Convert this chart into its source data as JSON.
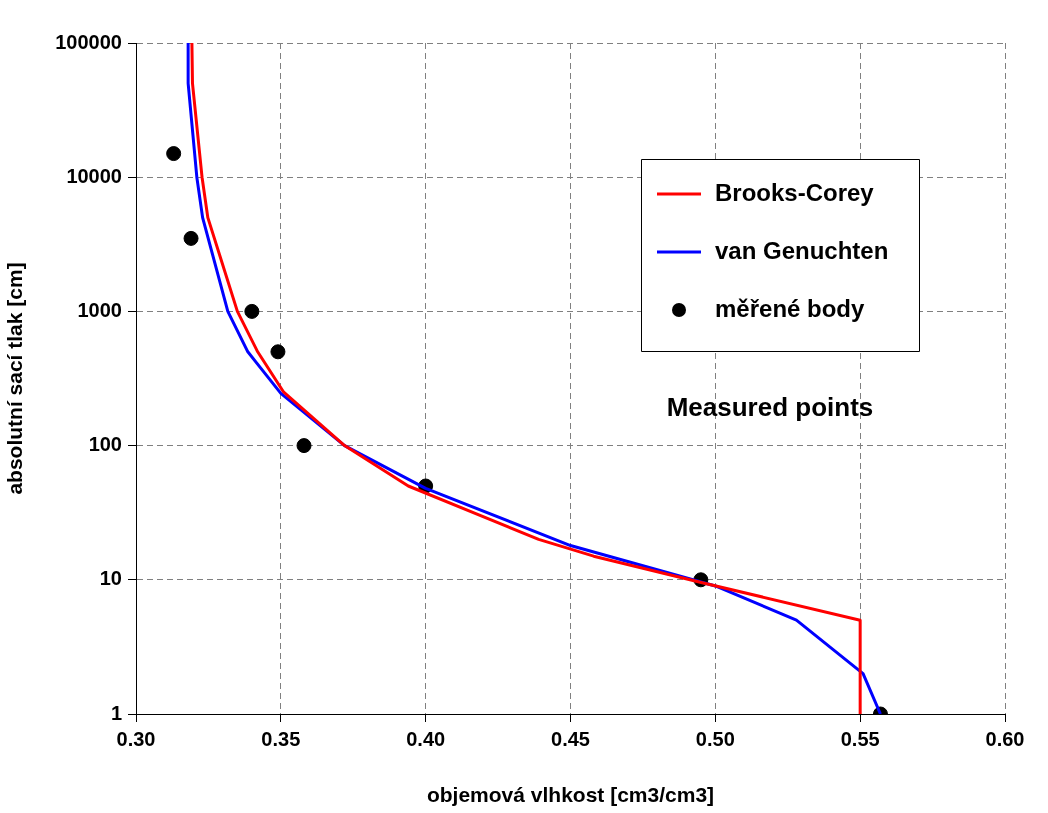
{
  "chart_data": {
    "type": "line",
    "xlabel": "objemová vlhkost [cm3/cm3]",
    "ylabel": "absolutní sací tlak [cm]",
    "log": "y",
    "grid": true,
    "legend": "top right",
    "xlim": [
      0.3,
      0.6
    ],
    "xticks": [
      {
        "value": 0.3,
        "label": "0.30"
      },
      {
        "value": 0.35,
        "label": "0.35"
      },
      {
        "value": 0.4,
        "label": "0.40"
      },
      {
        "value": 0.45,
        "label": "0.45"
      },
      {
        "value": 0.5,
        "label": "0.50"
      },
      {
        "value": 0.55,
        "label": "0.55"
      },
      {
        "value": 0.6,
        "label": "0.60"
      }
    ],
    "ylim": [
      1,
      100000
    ],
    "yticks": [
      1,
      10,
      100,
      1000,
      10000,
      100000
    ],
    "annotations": [
      "Measured points"
    ],
    "series": [
      {
        "name": "Brooks-Corey",
        "type": "line",
        "color": "#ff0000",
        "marker": "none",
        "line_style": "solid",
        "x": [
          0.3193,
          0.3195,
          0.3228,
          0.3248,
          0.335,
          0.342,
          0.351,
          0.372,
          0.394,
          0.439,
          0.458,
          0.4955,
          0.55,
          0.55
        ],
        "values": [
          100000,
          50000,
          10000,
          5000,
          1000,
          500,
          250,
          100,
          50,
          20,
          15,
          9.5,
          5,
          1
        ]
      },
      {
        "name": "van Genuchten",
        "type": "line",
        "color": "#0000ff",
        "marker": "none",
        "line_style": "solid",
        "x": [
          0.318,
          0.318,
          0.321,
          0.323,
          0.3317,
          0.3386,
          0.35,
          0.372,
          0.4,
          0.45,
          0.5,
          0.528,
          0.551,
          0.557
        ],
        "values": [
          100000,
          50000,
          10000,
          5000,
          1000,
          500,
          245,
          100,
          48,
          18,
          9,
          5,
          2,
          1
        ]
      },
      {
        "name": "měřené body",
        "type": "scatter",
        "color": "#000000",
        "marker": "circle",
        "x": [
          0.313,
          0.319,
          0.34,
          0.349,
          0.358,
          0.4,
          0.495,
          0.557
        ],
        "values": [
          15000,
          3500,
          1000,
          500,
          100,
          50,
          10,
          1
        ]
      }
    ]
  }
}
